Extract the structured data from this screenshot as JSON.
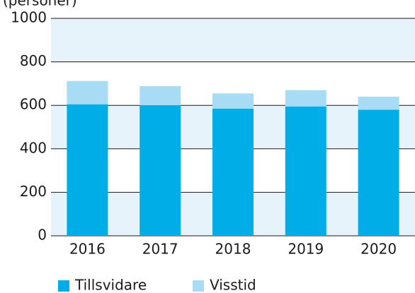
{
  "chart_data": {
    "type": "stacked_bar",
    "y_label": "(personer)",
    "categories": [
      "2016",
      "2017",
      "2018",
      "2019",
      "2020"
    ],
    "series": [
      {
        "name": "Tillsvidare",
        "color": "#00ade6",
        "values": [
          605,
          600,
          585,
          595,
          580
        ]
      },
      {
        "name": "Visstid",
        "color": "#a8dcf5",
        "values": [
          107,
          88,
          70,
          75,
          60
        ]
      }
    ],
    "ylim": [
      0,
      1000
    ],
    "yticks": [
      0,
      200,
      400,
      600,
      800,
      1000
    ],
    "grid": true
  }
}
